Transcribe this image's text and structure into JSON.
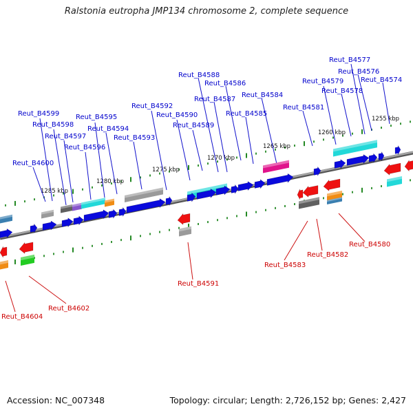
{
  "title": "Ralstonia eutropha JMP134 chromosome 2, complete sequence",
  "footer": {
    "accession": "Accession: NC_007348",
    "topology": "Topology: circular; Length: 2,726,152 bp; Genes: 2,427"
  },
  "colors": {
    "forward_label": "#0000cc",
    "reverse_label": "#cc0000",
    "backbone": "#888888",
    "tick": "#228822",
    "gene_blue": "#0a0adc",
    "gene_cyan": "#22d8d8",
    "gene_red": "#ee1111",
    "gene_gray": "#9a9a9a",
    "gene_darkgray": "#606060",
    "gene_orange": "#f08c14",
    "gene_purple": "#8855cc",
    "gene_magenta": "#e0148c",
    "gene_green": "#22cc22",
    "gene_steelblue": "#3a7fb0"
  },
  "ticks": [
    {
      "label": "1285 kbp"
    },
    {
      "label": "1280 kbp"
    },
    {
      "label": "1275 kbp"
    },
    {
      "label": "1270 kbp"
    },
    {
      "label": "1265 kbp"
    },
    {
      "label": "1260 kbp"
    },
    {
      "label": "1255 kbp"
    }
  ],
  "forward_genes": [
    "Reut_B4600",
    "Reut_B4599",
    "Reut_B4598",
    "Reut_B4597",
    "Reut_B4596",
    "Reut_B4595",
    "Reut_B4594",
    "Reut_B4593",
    "Reut_B4592",
    "Reut_B4590",
    "Reut_B4589",
    "Reut_B4588",
    "Reut_B4587",
    "Reut_B4586",
    "Reut_B4585",
    "Reut_B4584",
    "Reut_B4581",
    "Reut_B4579",
    "Reut_B4578",
    "Reut_B4577",
    "Reut_B4576",
    "Reut_B4574"
  ],
  "reverse_genes": [
    "Reut_B4604",
    "Reut_B4602",
    "Reut_B4591",
    "Reut_B4583",
    "Reut_B4582",
    "Reut_B4580"
  ]
}
